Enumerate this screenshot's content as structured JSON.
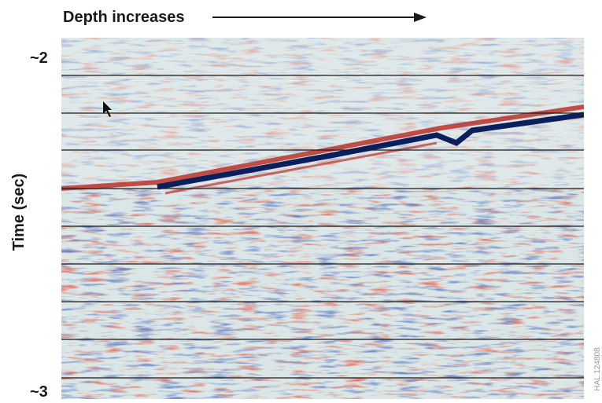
{
  "header": {
    "title": "Depth increases"
  },
  "axis": {
    "label": "Time (sec)",
    "top_label": "~2",
    "bottom_label": "~3"
  },
  "figure_id": "HAL 124808"
}
